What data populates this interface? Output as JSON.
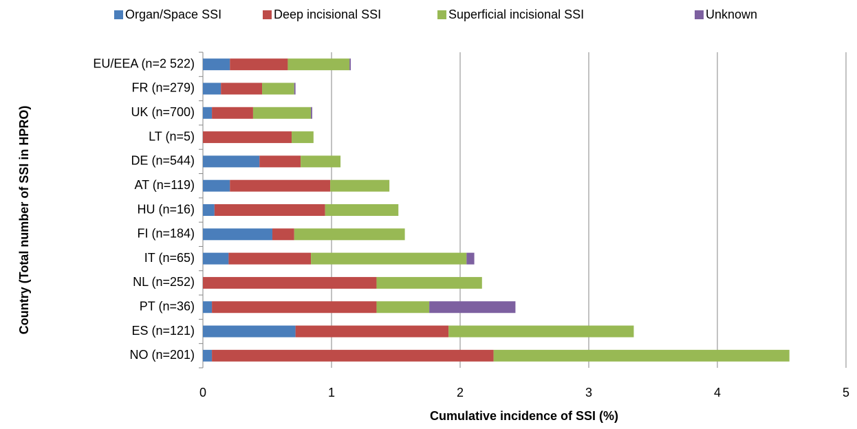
{
  "chart_data": {
    "type": "stacked_barh",
    "xlabel": "Cumulative incidence of SSI (%)",
    "ylabel": "Country  (Total number of SSI in HPRO)",
    "categories": [
      "EU/EEA (n=2 522)",
      "FR (n=279)",
      "UK (n=700)",
      "LT (n=5)",
      "DE (n=544)",
      "AT (n=119)",
      "HU (n=16)",
      "FI (n=184)",
      "IT (n=65)",
      "NL (n=252)",
      "PT (n=36)",
      "ES (n=121)",
      "NO (n=201)"
    ],
    "series": [
      {
        "name": "Organ/Space SSI",
        "color": "#4a7ebb",
        "values": [
          0.21,
          0.14,
          0.07,
          0,
          0.44,
          0.21,
          0.09,
          0.54,
          0.2,
          0,
          0.07,
          0.72,
          0.07
        ]
      },
      {
        "name": "Deep incisional SSI",
        "color": "#be4b48",
        "values": [
          0.45,
          0.32,
          0.32,
          0.69,
          0.32,
          0.78,
          0.86,
          0.17,
          0.64,
          1.35,
          1.28,
          1.19,
          2.19
        ]
      },
      {
        "name": "Superficial incisional SSI",
        "color": "#98b954",
        "values": [
          0.48,
          0.25,
          0.45,
          0.17,
          0.31,
          0.46,
          0.57,
          0.86,
          1.21,
          0.82,
          0.41,
          1.44,
          2.3
        ]
      },
      {
        "name": "Unknown",
        "color": "#7d60a0",
        "values": [
          0.01,
          0.01,
          0.01,
          0,
          0,
          0,
          0,
          0,
          0.06,
          0,
          0.67,
          0,
          0
        ]
      }
    ],
    "xlim": [
      0,
      5
    ],
    "xticks": [
      0,
      1,
      2,
      3,
      4,
      5
    ],
    "grid": true,
    "legend": "top"
  }
}
